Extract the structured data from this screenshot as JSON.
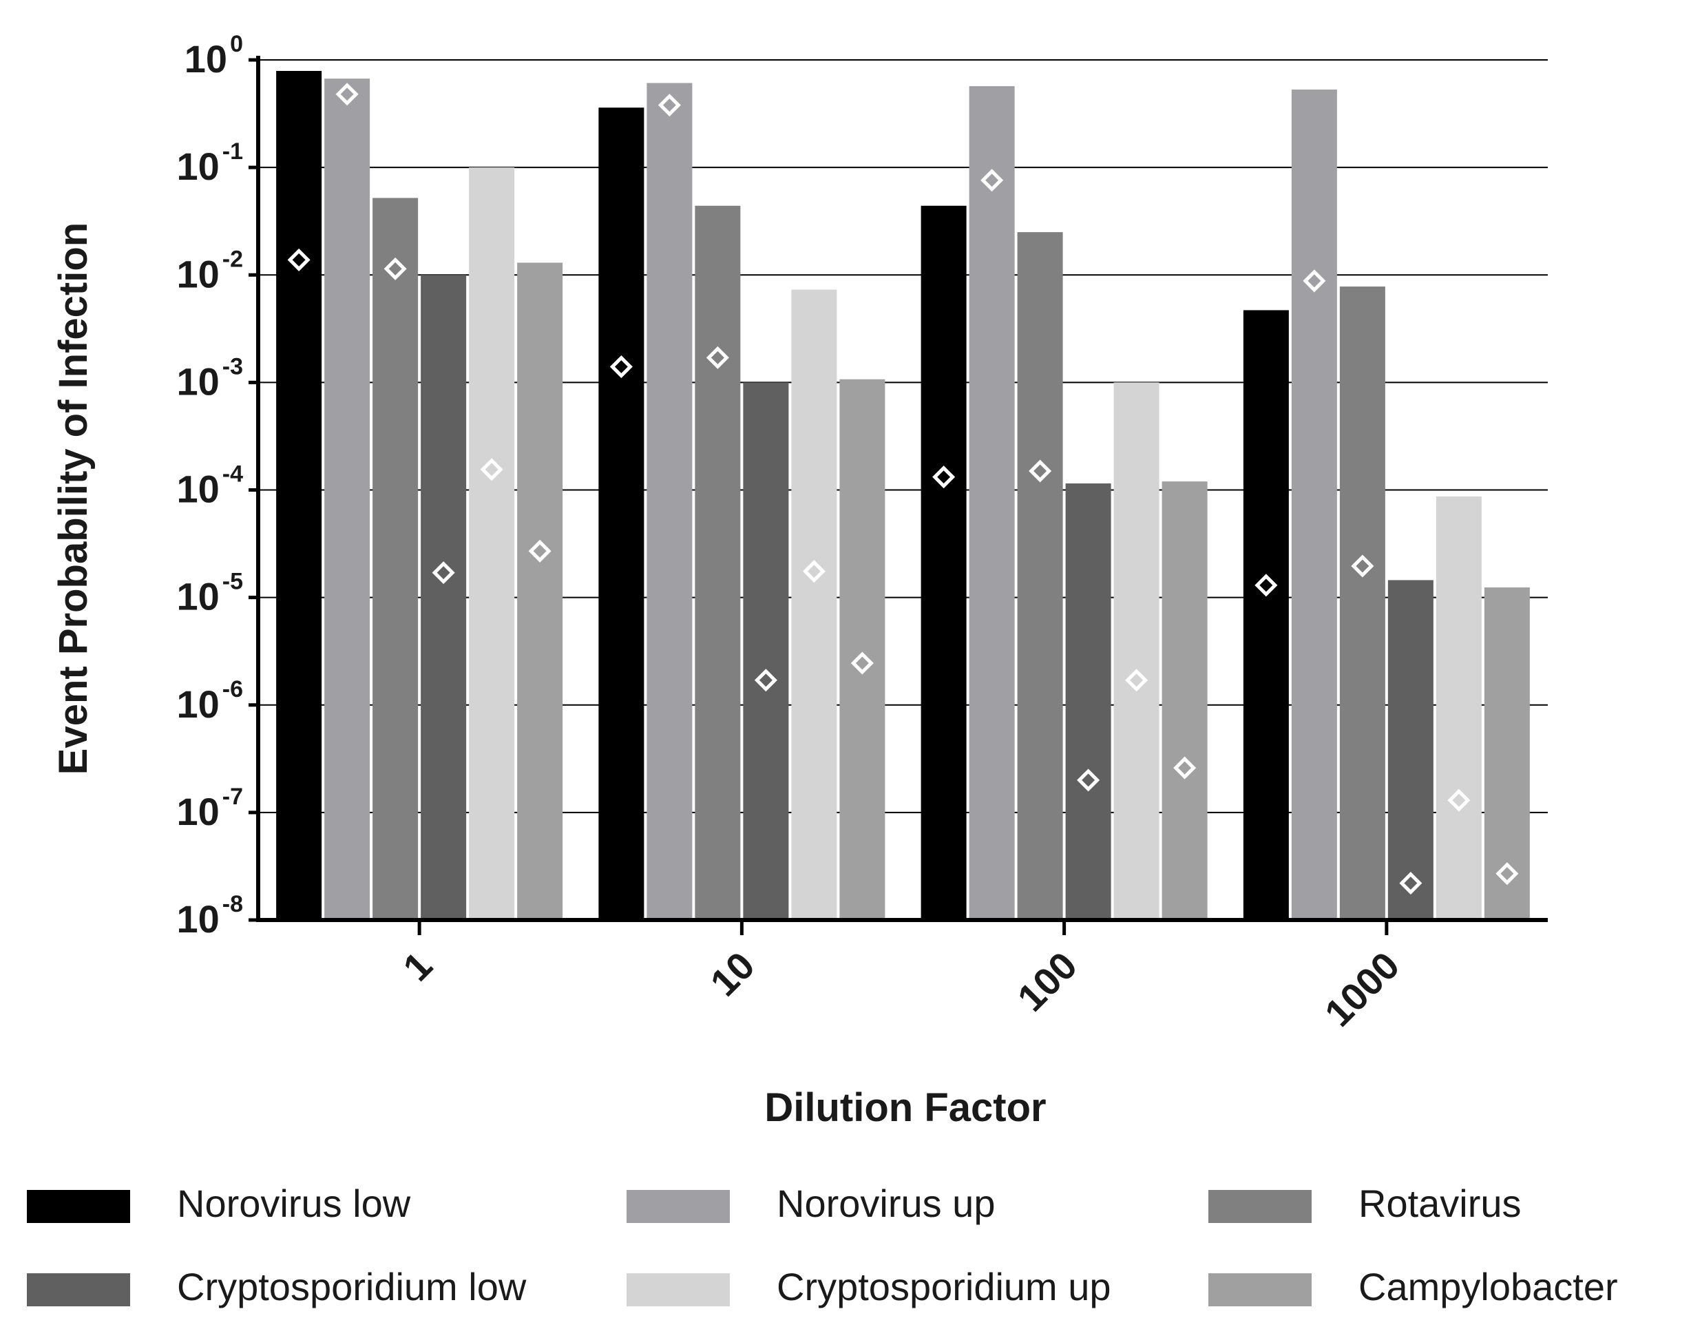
{
  "chart_data": {
    "type": "bar",
    "x_label": "Dilution Factor",
    "y_label": "Event Probability of Infection",
    "categories": [
      "1",
      "10",
      "100",
      "1000"
    ],
    "log_scale": true,
    "grid": true,
    "legend_position": "bottom",
    "marker_color": "#ffffff",
    "ylim": [
      1e-08,
      1
    ],
    "yticks": [
      {
        "value": 1,
        "label": "10",
        "exponent": "0"
      },
      {
        "value": 0.1,
        "label": "10",
        "exponent": "-1"
      },
      {
        "value": 0.01,
        "label": "10",
        "exponent": "-2"
      },
      {
        "value": 0.001,
        "label": "10",
        "exponent": "-3"
      },
      {
        "value": 0.0001,
        "label": "10",
        "exponent": "-4"
      },
      {
        "value": 1e-05,
        "label": "10",
        "exponent": "-5"
      },
      {
        "value": 1e-06,
        "label": "10",
        "exponent": "-6"
      },
      {
        "value": 1e-07,
        "label": "10",
        "exponent": "-7"
      },
      {
        "value": 1e-08,
        "label": "10",
        "exponent": "-8"
      }
    ],
    "series": [
      {
        "name": "Norovirus low",
        "color": "#000000",
        "values": [
          0.79,
          0.36,
          0.044,
          0.0047
        ],
        "points": [
          0.0138,
          0.0014,
          0.000132,
          1.3e-05
        ]
      },
      {
        "name": "Norovirus up",
        "color": "#a0a0a4",
        "values": [
          0.67,
          0.61,
          0.57,
          0.53
        ],
        "points": [
          0.48,
          0.38,
          0.076,
          0.0088
        ]
      },
      {
        "name": "Rotavirus",
        "color": "#808080",
        "values": [
          0.052,
          0.044,
          0.025,
          0.0078
        ],
        "points": [
          0.0114,
          0.0017,
          0.00015,
          1.96e-05
        ]
      },
      {
        "name": "Cryptosporidium low",
        "color": "#606060",
        "values": [
          0.01,
          0.001,
          0.000115,
          1.45e-05
        ],
        "points": [
          1.7e-05,
          1.7e-06,
          2e-07,
          2.2e-08
        ]
      },
      {
        "name": "Cryptosporidium up",
        "color": "#d4d4d4",
        "values": [
          0.1,
          0.0073,
          0.001,
          8.7e-05
        ],
        "points": [
          0.000155,
          1.75e-05,
          1.7e-06,
          1.3e-07
        ]
      },
      {
        "name": "Campylobacter",
        "color": "#a0a0a0",
        "values": [
          0.013,
          0.00107,
          0.00012,
          1.24e-05
        ],
        "points": [
          2.7e-05,
          2.45e-06,
          2.6e-07,
          2.7e-08
        ]
      }
    ]
  }
}
